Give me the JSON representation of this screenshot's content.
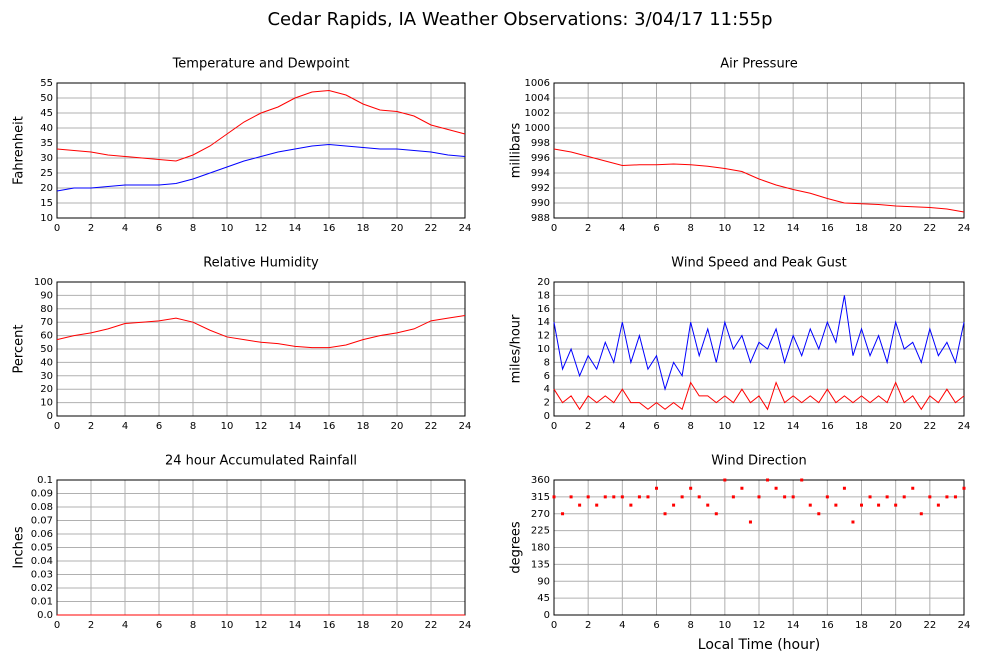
{
  "title": "Cedar Rapids, IA Weather Observations: 3/04/17 11:55p",
  "chart_data": [
    {
      "type": "line",
      "title": "Temperature and Dewpoint",
      "ylabel": "Fahrenheit",
      "x": [
        0,
        1,
        2,
        3,
        4,
        5,
        6,
        7,
        8,
        9,
        10,
        11,
        12,
        13,
        14,
        15,
        16,
        17,
        18,
        19,
        20,
        21,
        22,
        23,
        24
      ],
      "series": [
        {
          "color": "#ff0000",
          "values": [
            33,
            32.5,
            32,
            31,
            30.5,
            30,
            29.5,
            29,
            31,
            34,
            38,
            42,
            45,
            47,
            50,
            52,
            52.5,
            51,
            48,
            46,
            45.5,
            44,
            41,
            39.5,
            38
          ]
        },
        {
          "color": "#0000ff",
          "values": [
            19,
            20,
            20,
            20.5,
            21,
            21,
            21,
            21.5,
            23,
            25,
            27,
            29,
            30.5,
            32,
            33,
            34,
            34.5,
            34,
            33.5,
            33,
            33,
            32.5,
            32,
            31,
            30.5
          ]
        }
      ],
      "xlim": [
        0,
        24
      ],
      "xticks": [
        0,
        2,
        4,
        6,
        8,
        10,
        12,
        14,
        16,
        18,
        20,
        22,
        24
      ],
      "ylim": [
        10,
        55
      ],
      "yticks": [
        10,
        15,
        20,
        25,
        30,
        35,
        40,
        45,
        50,
        55
      ],
      "grid": true
    },
    {
      "type": "line",
      "title": "Air Pressure",
      "ylabel": "millibars",
      "x": [
        0,
        1,
        2,
        3,
        4,
        5,
        6,
        7,
        8,
        9,
        10,
        11,
        12,
        13,
        14,
        15,
        16,
        17,
        18,
        19,
        20,
        21,
        22,
        23,
        24
      ],
      "series": [
        {
          "color": "#ff0000",
          "values": [
            997.2,
            996.8,
            996.2,
            995.6,
            995,
            995.1,
            995.1,
            995.2,
            995.1,
            994.9,
            994.6,
            994.2,
            993.2,
            992.4,
            991.8,
            991.3,
            990.6,
            990,
            989.9,
            989.8,
            989.6,
            989.5,
            989.4,
            989.2,
            988.8
          ]
        }
      ],
      "xlim": [
        0,
        24
      ],
      "xticks": [
        0,
        2,
        4,
        6,
        8,
        10,
        12,
        14,
        16,
        18,
        20,
        22,
        24
      ],
      "ylim": [
        988,
        1006
      ],
      "yticks": [
        988,
        990,
        992,
        994,
        996,
        998,
        1000,
        1002,
        1004,
        1006
      ],
      "grid": true
    },
    {
      "type": "line",
      "title": "Relative Humidity",
      "ylabel": "Percent",
      "x": [
        0,
        1,
        2,
        3,
        4,
        5,
        6,
        7,
        8,
        9,
        10,
        11,
        12,
        13,
        14,
        15,
        16,
        17,
        18,
        19,
        20,
        21,
        22,
        23,
        24
      ],
      "series": [
        {
          "color": "#ff0000",
          "values": [
            57,
            60,
            62,
            65,
            69,
            70,
            71,
            73,
            70,
            64,
            59,
            57,
            55,
            54,
            52,
            51,
            51,
            53,
            57,
            60,
            62,
            65,
            71,
            73,
            75
          ]
        }
      ],
      "xlim": [
        0,
        24
      ],
      "xticks": [
        0,
        2,
        4,
        6,
        8,
        10,
        12,
        14,
        16,
        18,
        20,
        22,
        24
      ],
      "ylim": [
        0,
        100
      ],
      "yticks": [
        0,
        10,
        20,
        30,
        40,
        50,
        60,
        70,
        80,
        90,
        100
      ],
      "grid": true
    },
    {
      "type": "line",
      "title": "Wind Speed and Peak Gust",
      "ylabel": "miles/hour",
      "x": [
        0,
        0.5,
        1,
        1.5,
        2,
        2.5,
        3,
        3.5,
        4,
        4.5,
        5,
        5.5,
        6,
        6.5,
        7,
        7.5,
        8,
        8.5,
        9,
        9.5,
        10,
        10.5,
        11,
        11.5,
        12,
        12.5,
        13,
        13.5,
        14,
        14.5,
        15,
        15.5,
        16,
        16.5,
        17,
        17.5,
        18,
        18.5,
        19,
        19.5,
        20,
        20.5,
        21,
        21.5,
        22,
        22.5,
        23,
        23.5,
        24
      ],
      "series": [
        {
          "color": "#0000ff",
          "values": [
            14,
            7,
            10,
            6,
            9,
            7,
            11,
            8,
            14,
            8,
            12,
            7,
            9,
            4,
            8,
            6,
            14,
            9,
            13,
            8,
            14,
            10,
            12,
            8,
            11,
            10,
            13,
            8,
            12,
            9,
            13,
            10,
            14,
            11,
            18,
            9,
            13,
            9,
            12,
            8,
            14,
            10,
            11,
            8,
            13,
            9,
            11,
            8,
            14
          ]
        },
        {
          "color": "#ff0000",
          "values": [
            4,
            2,
            3,
            1,
            3,
            2,
            3,
            2,
            4,
            2,
            2,
            1,
            2,
            1,
            2,
            1,
            5,
            3,
            3,
            2,
            3,
            2,
            4,
            2,
            3,
            1,
            5,
            2,
            3,
            2,
            3,
            2,
            4,
            2,
            3,
            2,
            3,
            2,
            3,
            2,
            5,
            2,
            3,
            1,
            3,
            2,
            4,
            2,
            3
          ]
        }
      ],
      "xlim": [
        0,
        24
      ],
      "xticks": [
        0,
        2,
        4,
        6,
        8,
        10,
        12,
        14,
        16,
        18,
        20,
        22,
        24
      ],
      "ylim": [
        0,
        20
      ],
      "yticks": [
        0,
        2,
        4,
        6,
        8,
        10,
        12,
        14,
        16,
        18,
        20
      ],
      "grid": true
    },
    {
      "type": "line",
      "title": "24 hour Accumulated Rainfall",
      "ylabel": "Inches",
      "x": [
        0,
        24
      ],
      "series": [
        {
          "color": "#ff0000",
          "values": [
            0,
            0
          ]
        }
      ],
      "xlim": [
        0,
        24
      ],
      "xticks": [
        0,
        2,
        4,
        6,
        8,
        10,
        12,
        14,
        16,
        18,
        20,
        22,
        24
      ],
      "ylim": [
        0,
        0.1
      ],
      "yticks": [
        {
          "value": 0,
          "label": "0.0"
        },
        0.01,
        0.02,
        0.03,
        0.04,
        0.05,
        0.06,
        0.07,
        0.08,
        0.09,
        0.1
      ],
      "grid": true
    },
    {
      "type": "scatter",
      "title": "Wind Direction",
      "ylabel": "degrees",
      "xlabel": "Local Time (hour)",
      "x": [
        0,
        0.5,
        1,
        1.5,
        2,
        2.5,
        3,
        3.5,
        4,
        4.5,
        5,
        5.5,
        6,
        6.5,
        7,
        7.5,
        8,
        8.5,
        9,
        9.5,
        10,
        10.5,
        11,
        11.5,
        12,
        12.5,
        13,
        13.5,
        14,
        14.5,
        15,
        15.5,
        16,
        16.5,
        17,
        17.5,
        18,
        18.5,
        19,
        19.5,
        20,
        20.5,
        21,
        21.5,
        22,
        22.5,
        23,
        23.5,
        24
      ],
      "series": [
        {
          "color": "#ff0000",
          "values": [
            315,
            270,
            315,
            293,
            315,
            293,
            315,
            315,
            315,
            293,
            315,
            315,
            338,
            270,
            293,
            315,
            338,
            315,
            293,
            270,
            360,
            315,
            338,
            248,
            315,
            360,
            338,
            315,
            315,
            360,
            293,
            270,
            315,
            293,
            338,
            248,
            293,
            315,
            293,
            315,
            293,
            315,
            338,
            270,
            315,
            293,
            315,
            315,
            338
          ]
        }
      ],
      "xlim": [
        0,
        24
      ],
      "xticks": [
        0,
        2,
        4,
        6,
        8,
        10,
        12,
        14,
        16,
        18,
        20,
        22,
        24
      ],
      "ylim": [
        0,
        360
      ],
      "yticks": [
        0,
        45,
        90,
        135,
        180,
        225,
        270,
        315,
        360
      ],
      "grid": true
    }
  ]
}
